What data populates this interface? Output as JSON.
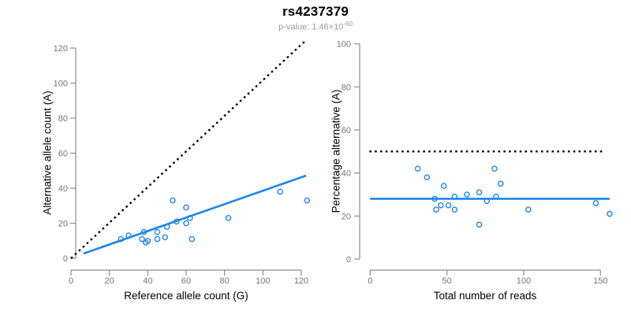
{
  "header": {
    "title": "rs4237379",
    "pvalue_prefix": "p-value: 1.46×10",
    "pvalue_exponent": "-60"
  },
  "colors": {
    "accent": "#1C86EE",
    "axis": "#8c8c8c",
    "tick_text": "#757575",
    "identity": "#000000"
  },
  "chart_data": [
    {
      "type": "scatter",
      "panel": "left",
      "xlabel": "Reference allele count (G)",
      "ylabel": "Alternative allele count (A)",
      "xlim": [
        0,
        123
      ],
      "ylim": [
        0,
        124
      ],
      "xticks": [
        0,
        20,
        40,
        60,
        80,
        100,
        120
      ],
      "yticks": [
        0,
        20,
        40,
        60,
        80,
        100,
        120
      ],
      "grid": false,
      "points": [
        [
          26,
          11
        ],
        [
          30,
          13
        ],
        [
          37,
          11
        ],
        [
          38,
          15
        ],
        [
          39,
          9
        ],
        [
          40,
          10
        ],
        [
          45,
          15
        ],
        [
          45,
          11
        ],
        [
          49,
          12
        ],
        [
          50,
          18
        ],
        [
          53,
          33
        ],
        [
          55,
          21
        ],
        [
          60,
          20
        ],
        [
          60,
          29
        ],
        [
          62,
          23
        ],
        [
          63,
          11
        ],
        [
          82,
          23
        ],
        [
          109,
          38
        ],
        [
          123,
          33
        ]
      ],
      "lines": [
        {
          "name": "identity-line",
          "style": "dotted",
          "color": "identity",
          "x1": 0,
          "y1": 0,
          "x2": 122,
          "y2": 124
        },
        {
          "name": "fit-line",
          "style": "solid",
          "color": "accent",
          "x1": 6.5,
          "y1": 2.7,
          "x2": 122.5,
          "y2": 47.2
        }
      ]
    },
    {
      "type": "scatter",
      "panel": "right",
      "xlabel": "Total number of reads",
      "ylabel": "Percentage alternative (A)",
      "xlim": [
        0,
        156
      ],
      "ylim": [
        0,
        100
      ],
      "xticks": [
        0,
        50,
        100,
        150
      ],
      "yticks": [
        0,
        20,
        40,
        60,
        80,
        100
      ],
      "grid": false,
      "points": [
        [
          31,
          42
        ],
        [
          37,
          38
        ],
        [
          42,
          28
        ],
        [
          43,
          23
        ],
        [
          46,
          25
        ],
        [
          48,
          34
        ],
        [
          51,
          25
        ],
        [
          55,
          23
        ],
        [
          55,
          29
        ],
        [
          63,
          30
        ],
        [
          71,
          31
        ],
        [
          71,
          16
        ],
        [
          76,
          27
        ],
        [
          81,
          42
        ],
        [
          82,
          29
        ],
        [
          85,
          35
        ],
        [
          103,
          23
        ],
        [
          147,
          26
        ],
        [
          156,
          21
        ]
      ],
      "lines": [
        {
          "name": "fifty-percent-line",
          "style": "dotted",
          "color": "identity",
          "x1": -0.5,
          "y1": 50,
          "x2": 153,
          "y2": 50
        },
        {
          "name": "fit-line",
          "style": "solid",
          "color": "accent",
          "x1": 0,
          "y1": 28,
          "x2": 156,
          "y2": 28
        }
      ]
    }
  ]
}
